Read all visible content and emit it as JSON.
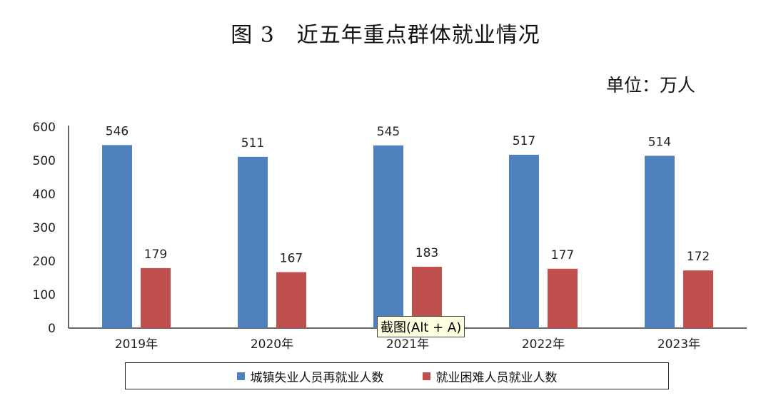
{
  "title": "图 3　近五年重点群体就业情况",
  "unit": "单位：万人",
  "tooltip": "截图(Alt + A)",
  "colors": {
    "series1": "#4f81bd",
    "series2": "#c0504d"
  },
  "chart_data": {
    "type": "bar",
    "categories": [
      "2019年",
      "2020年",
      "2021年",
      "2022年",
      "2023年"
    ],
    "series": [
      {
        "name": "城镇失业人员再就业人数",
        "values": [
          546,
          511,
          545,
          517,
          514
        ]
      },
      {
        "name": "就业困难人员就业人数",
        "values": [
          179,
          167,
          183,
          177,
          172
        ]
      }
    ],
    "ylim": [
      0,
      600
    ],
    "yticks": [
      0,
      100,
      200,
      300,
      400,
      500,
      600
    ],
    "grid": false,
    "legend": "bottom"
  }
}
